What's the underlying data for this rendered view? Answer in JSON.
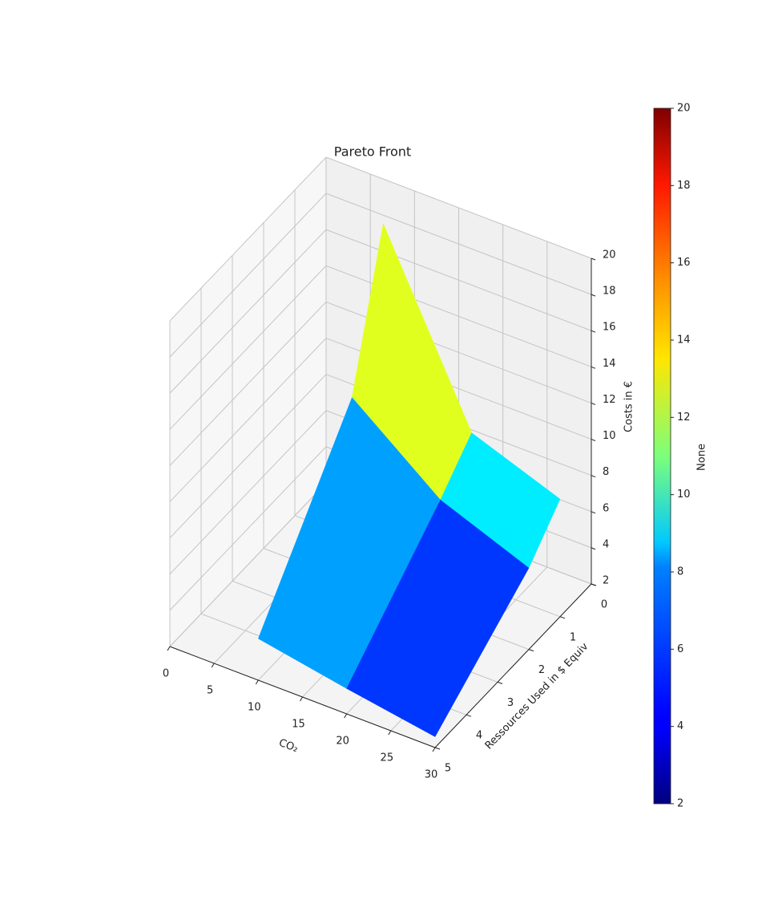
{
  "chart_data": {
    "type": "surface",
    "title": "Pareto Front",
    "xlabel": "CO₂",
    "ylabel": "Ressources Used in $ Equiv",
    "zlabel": "Costs in €",
    "x": [
      10,
      20,
      30
    ],
    "y": [
      1,
      2,
      5
    ],
    "z": [
      [
        20,
        10.3,
        8.5
      ],
      [
        12.2,
        8.4,
        6.5
      ],
      [
        4.3,
        3.4,
        2.6
      ]
    ],
    "xlim": [
      0,
      30
    ],
    "xticks": [
      0,
      5,
      10,
      15,
      20,
      25,
      30
    ],
    "ylim": [
      0,
      5
    ],
    "yticks": [
      0,
      1,
      2,
      3,
      4,
      5
    ],
    "zlim": [
      2,
      20
    ],
    "zticks": [
      2,
      4,
      6,
      8,
      10,
      12,
      14,
      16,
      18,
      20
    ],
    "colormap": "jet",
    "colorbar": {
      "label": "None",
      "lim": [
        2,
        20
      ],
      "ticks": [
        2,
        4,
        6,
        8,
        10,
        12,
        14,
        16,
        18,
        20
      ]
    },
    "grid": true
  }
}
